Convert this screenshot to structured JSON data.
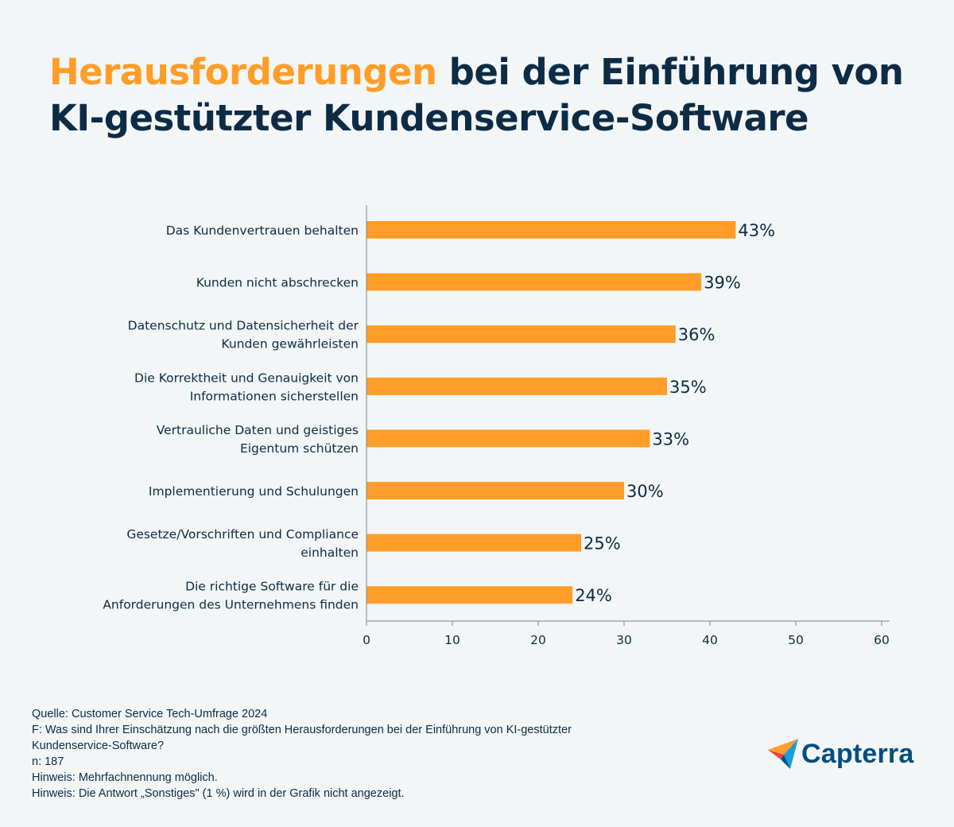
{
  "title": {
    "highlight": "Herausforderungen",
    "rest_line1": " bei der Einführung von",
    "line2": "KI-gestützter Kundenservice-Software"
  },
  "colors": {
    "accent": "#ff9d28",
    "text": "#0d2b45",
    "background": "#f2f6f6",
    "axis": "#7a8790"
  },
  "chart_data": {
    "type": "bar",
    "orientation": "horizontal",
    "categories": [
      [
        "Das Kundenvertrauen behalten"
      ],
      [
        "Kunden nicht abschrecken"
      ],
      [
        "Datenschutz und Datensicherheit der",
        "Kunden gewährleisten"
      ],
      [
        "Die Korrektheit und Genauigkeit von",
        "Informationen sicherstellen"
      ],
      [
        "Vertrauliche Daten und geistiges",
        "Eigentum schützen"
      ],
      [
        "Implementierung und Schulungen"
      ],
      [
        "Gesetze/Vorschriften und Compliance",
        "einhalten"
      ],
      [
        "Die richtige Software für die",
        "Anforderungen des Unternehmens finden"
      ]
    ],
    "values": [
      43,
      39,
      36,
      35,
      33,
      30,
      25,
      24
    ],
    "value_labels": [
      "43%",
      "39%",
      "36%",
      "35%",
      "33%",
      "30%",
      "25%",
      "24%"
    ],
    "xlim": [
      0,
      60
    ],
    "xticks": [
      0,
      10,
      20,
      30,
      40,
      50,
      60
    ],
    "xlabel": "",
    "ylabel": "",
    "grid": false,
    "bar_color": "#ff9d28"
  },
  "notes": {
    "source": "Quelle: Customer Service Tech-Umfrage 2024",
    "question_line1": "F: Was sind Ihrer Einschätzung nach die größten Herausforderungen bei der Einführung von KI-gestützter",
    "question_line2": "Kundenservice-Software?",
    "n": "n: 187",
    "hint1": "Hinweis: Mehrfachnennung möglich.",
    "hint2": "Hinweis: Die Antwort „Sonstiges\" (1 %) wird in der Grafik nicht angezeigt."
  },
  "logo": {
    "text": "Capterra"
  }
}
